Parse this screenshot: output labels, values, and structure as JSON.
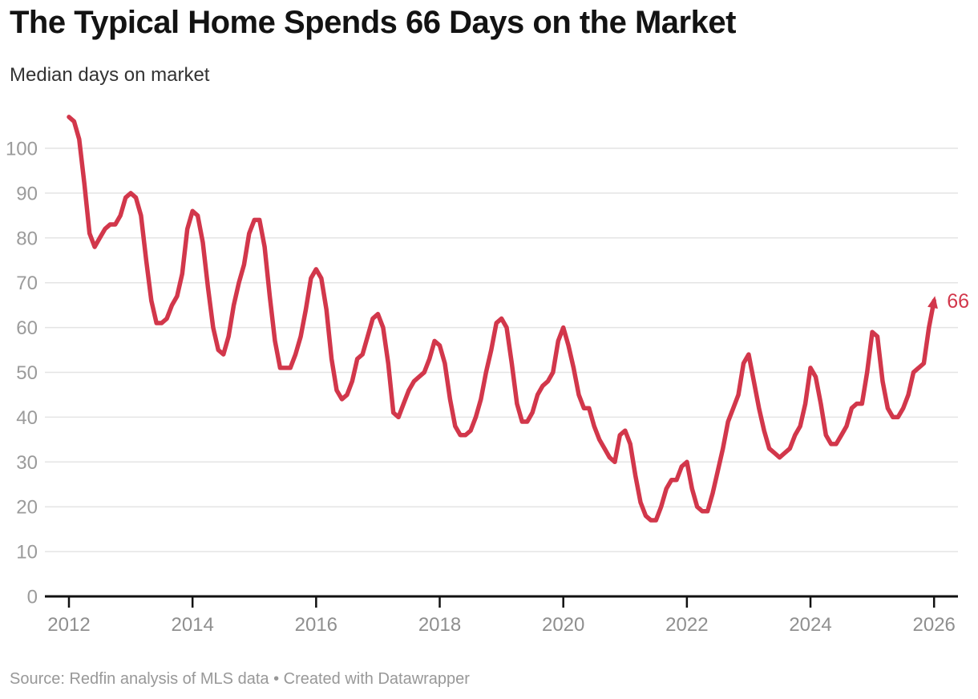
{
  "header": {
    "title": "The Typical Home Spends 66 Days on the Market",
    "subtitle": "Median days on market"
  },
  "footer": {
    "text": "Source: Redfin analysis of MLS data • Created with Datawrapper"
  },
  "chart_data": {
    "type": "line",
    "title": "The Typical Home Spends 66 Days on the Market",
    "subtitle": "Median days on market",
    "series_name": "Median days on market",
    "frequency": "monthly",
    "start": "2012-01",
    "end": "2026-01",
    "values": [
      107,
      106,
      102,
      92,
      81,
      78,
      80,
      82,
      83,
      83,
      85,
      89,
      90,
      89,
      85,
      75,
      66,
      61,
      61,
      62,
      65,
      67,
      72,
      82,
      86,
      85,
      79,
      69,
      60,
      55,
      54,
      58,
      65,
      70,
      74,
      81,
      84,
      84,
      78,
      67,
      57,
      51,
      51,
      51,
      54,
      58,
      64,
      71,
      73,
      71,
      64,
      53,
      46,
      44,
      45,
      48,
      53,
      54,
      58,
      62,
      63,
      60,
      52,
      41,
      40,
      43,
      46,
      48,
      49,
      50,
      53,
      57,
      56,
      52,
      44,
      38,
      36,
      36,
      37,
      40,
      44,
      50,
      55,
      61,
      62,
      60,
      52,
      43,
      39,
      39,
      41,
      45,
      47,
      48,
      50,
      57,
      60,
      56,
      51,
      45,
      42,
      42,
      38,
      35,
      33,
      31,
      30,
      36,
      37,
      34,
      27,
      21,
      18,
      17,
      17,
      20,
      24,
      26,
      26,
      29,
      30,
      24,
      20,
      19,
      19,
      23,
      28,
      33,
      39,
      42,
      45,
      52,
      54,
      48,
      42,
      37,
      33,
      32,
      31,
      32,
      33,
      36,
      38,
      43,
      51,
      49,
      43,
      36,
      34,
      34,
      36,
      38,
      42,
      43,
      43,
      50,
      59,
      58,
      48,
      42,
      40,
      40,
      42,
      45,
      50,
      51,
      52,
      60,
      66
    ],
    "end_label": "66",
    "x_tick_labels": [
      "2012",
      "2014",
      "2016",
      "2018",
      "2020",
      "2022",
      "2024",
      "2026"
    ],
    "y_ticks": [
      0,
      10,
      20,
      30,
      40,
      50,
      60,
      70,
      80,
      90,
      100
    ],
    "ylim": [
      0,
      110
    ],
    "grid": "horizontal",
    "legend": "none",
    "line_color": "#d2374b",
    "axis_label_color": "#9b9b9b",
    "grid_color": "#e4e4e4",
    "baseline_color": "#111111"
  }
}
